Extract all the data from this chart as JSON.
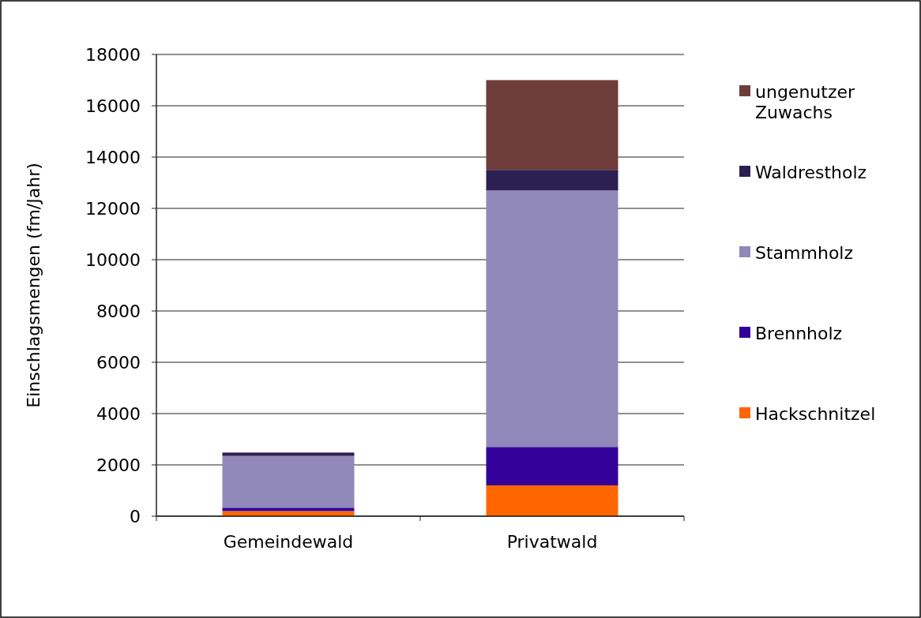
{
  "chart_data": {
    "type": "bar",
    "stacked": true,
    "ylabel": "Einschlagsmengen (fm/Jahr)",
    "categories": [
      "Gemeindewald",
      "Privatwald"
    ],
    "series": [
      {
        "name": "Hackschnitzel",
        "color": "#ff6600",
        "values": [
          200,
          1200
        ]
      },
      {
        "name": "Brennholz",
        "color": "#330099",
        "values": [
          130,
          1500
        ]
      },
      {
        "name": "Stammholz",
        "color": "#8f88b8",
        "values": [
          2020,
          10000
        ]
      },
      {
        "name": "Waldrestholz",
        "color": "#2c1f52",
        "values": [
          130,
          800
        ]
      },
      {
        "name": "ungenutzer Zuwachs",
        "color": "#6e3d39",
        "values": [
          0,
          3500
        ]
      }
    ],
    "ylim": [
      0,
      18000
    ],
    "yticks": [
      0,
      2000,
      4000,
      6000,
      8000,
      10000,
      12000,
      14000,
      16000,
      18000
    ],
    "grid": "y",
    "legend": "right"
  }
}
